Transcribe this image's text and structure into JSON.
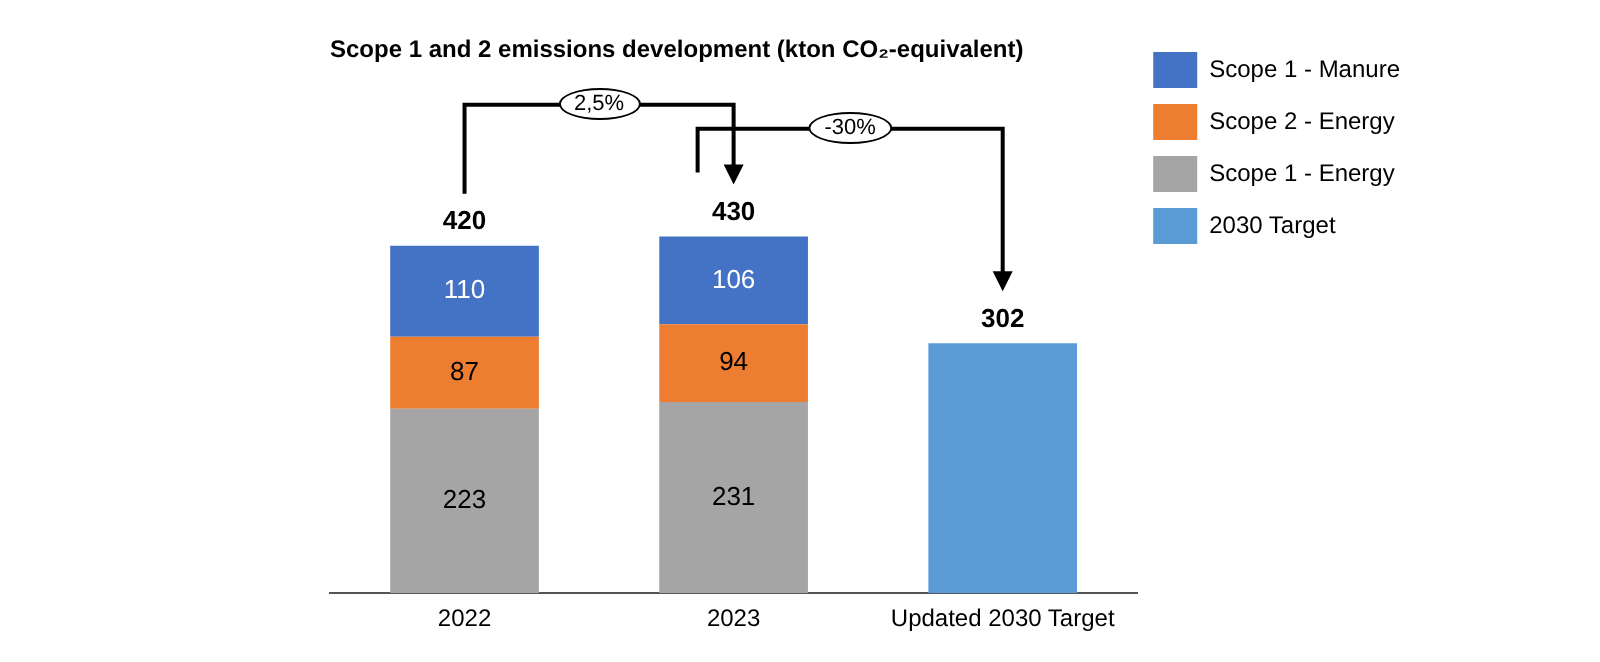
{
  "chart_data": {
    "type": "bar",
    "title": "Scope 1 and 2 emissions development (kton CO₂-equivalent)",
    "categories": [
      "2022",
      "2023",
      "Updated 2030 Target"
    ],
    "stacked": true,
    "series": [
      {
        "name": "2030 Target",
        "color": "#5b9bd5",
        "values": [
          null,
          null,
          302
        ]
      },
      {
        "name": "Scope 1 - Energy",
        "color": "#a5a5a5",
        "values": [
          223,
          231,
          null
        ],
        "value_labels": [
          "223",
          "231",
          null
        ]
      },
      {
        "name": "Scope 2 - Energy",
        "color": "#ed7d31",
        "values": [
          87,
          94,
          null
        ],
        "value_labels": [
          "87",
          "94",
          null
        ]
      },
      {
        "name": "Scope 1 - Manure",
        "color": "#4472c4",
        "values": [
          110,
          106,
          null
        ],
        "value_labels": [
          "110",
          "106",
          null
        ]
      }
    ],
    "totals": [
      "420",
      "430",
      "302"
    ],
    "annotations": [
      "2,5%",
      "-30%"
    ],
    "legend": "right",
    "grid": false
  }
}
